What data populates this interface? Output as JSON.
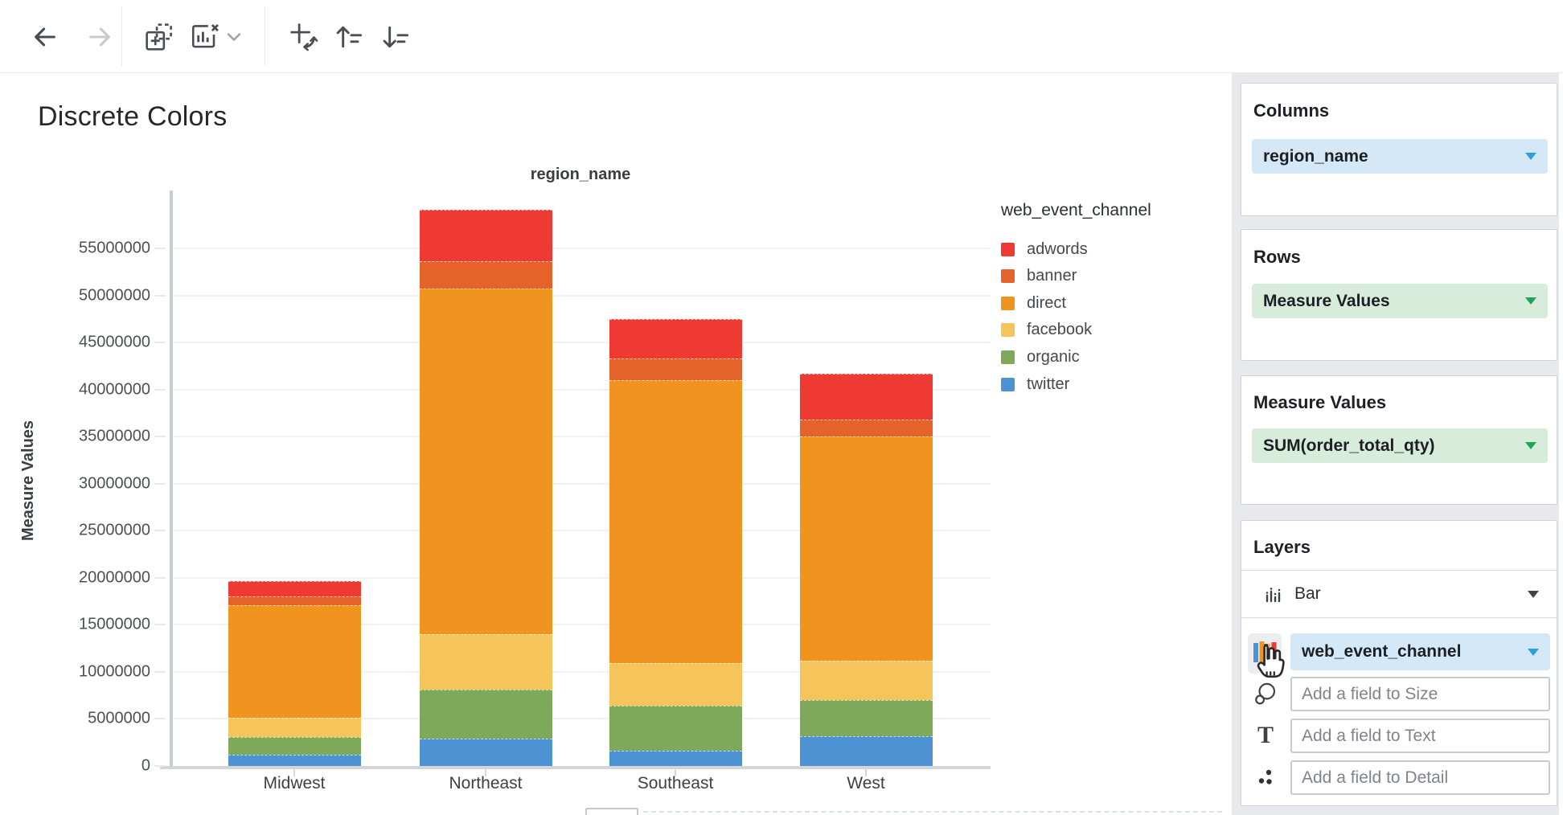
{
  "toolbar": {
    "icons": [
      "back-arrow",
      "forward-arrow",
      "add-element",
      "remove-chart",
      "dropdown-caret",
      "swap-axes",
      "sort-ascending",
      "sort-descending"
    ]
  },
  "chart": {
    "title": "Discrete Colors",
    "top_axis_label": "region_name",
    "y_axis_title": "Measure Values"
  },
  "chart_data": {
    "type": "bar",
    "stacked": true,
    "title": "Discrete Colors",
    "xlabel": "region_name",
    "ylabel": "Measure Values",
    "legend_title": "web_event_channel",
    "legend_position": "right",
    "grid": true,
    "ylim": [
      0,
      59500000
    ],
    "y_ticks": [
      "0",
      "5000000",
      "10000000",
      "15000000",
      "20000000",
      "25000000",
      "30000000",
      "35000000",
      "40000000",
      "45000000",
      "50000000",
      "55000000"
    ],
    "y_tick_values": [
      0,
      5000000,
      10000000,
      15000000,
      20000000,
      25000000,
      30000000,
      35000000,
      40000000,
      45000000,
      50000000,
      55000000
    ],
    "categories": [
      "Midwest",
      "Northeast",
      "Southeast",
      "West"
    ],
    "stack_order_bottom_to_top": [
      "twitter",
      "organic",
      "facebook",
      "direct",
      "banner",
      "adwords"
    ],
    "series": [
      {
        "name": "adwords",
        "color": "#ee3a33",
        "values": [
          1600000,
          5500000,
          4200000,
          4900000
        ]
      },
      {
        "name": "banner",
        "color": "#e5632b",
        "values": [
          900000,
          2900000,
          2300000,
          1800000
        ]
      },
      {
        "name": "direct",
        "color": "#f0931f",
        "values": [
          12000000,
          36700000,
          30100000,
          23800000
        ]
      },
      {
        "name": "facebook",
        "color": "#f5c45a",
        "values": [
          2000000,
          5900000,
          4500000,
          4200000
        ]
      },
      {
        "name": "organic",
        "color": "#7fa95a",
        "values": [
          1900000,
          5200000,
          4800000,
          3800000
        ]
      },
      {
        "name": "twitter",
        "color": "#4d93d3",
        "values": [
          1200000,
          2900000,
          1600000,
          3200000
        ]
      }
    ],
    "totals": [
      19600000,
      59100000,
      47500000,
      41700000
    ]
  },
  "panel": {
    "columns": {
      "heading": "Columns",
      "field": "region_name"
    },
    "rows": {
      "heading": "Rows",
      "field": "Measure Values"
    },
    "measure_values": {
      "heading": "Measure Values",
      "field": "SUM(order_total_qty)"
    },
    "layers": {
      "heading": "Layers",
      "layer_type": "Bar",
      "color_field": "web_event_channel",
      "size_placeholder": "Add a field to Size",
      "text_placeholder": "Add a field to Text",
      "detail_placeholder": "Add a field to Detail"
    }
  },
  "colors": {
    "pill_blue_bg": "#d5e8f7",
    "pill_green_bg": "#d7ecda",
    "caret_blue": "#2f9fd7",
    "caret_green": "#21a35a",
    "panel_bg": "#e7e9ec",
    "gridline": "#f0f1f2",
    "axis_line": "#c9ccce"
  }
}
